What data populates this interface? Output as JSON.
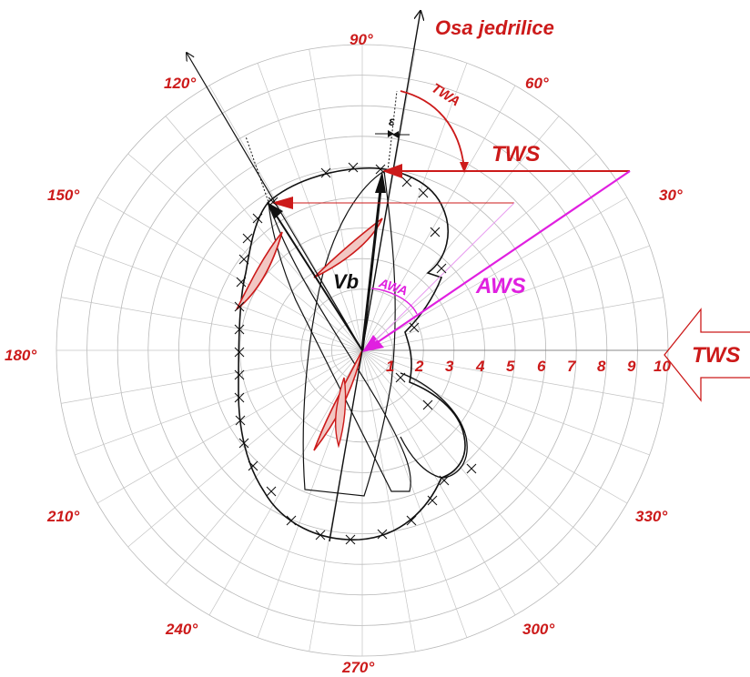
{
  "axis_title": "Osa jedrilice",
  "angle_labels": [
    "90°",
    "60°",
    "30°",
    "330°",
    "300°",
    "270°",
    "240°",
    "210°",
    "180°",
    "150°",
    "120°"
  ],
  "speed_labels": [
    "1",
    "2",
    "3",
    "4",
    "5",
    "6",
    "7",
    "8",
    "9",
    "10"
  ],
  "tws_top_label": "TWS",
  "tws_right_label": "TWS",
  "twa_label": "TWA",
  "awa_label": "AWA",
  "aws_label": "AWS",
  "vb_label": "Vb",
  "epsilon_label": "ε",
  "colors": {
    "red": "#cc1a1a",
    "magenta": "#e020e0",
    "grid": "#bfbfbf",
    "black": "#111111"
  }
}
